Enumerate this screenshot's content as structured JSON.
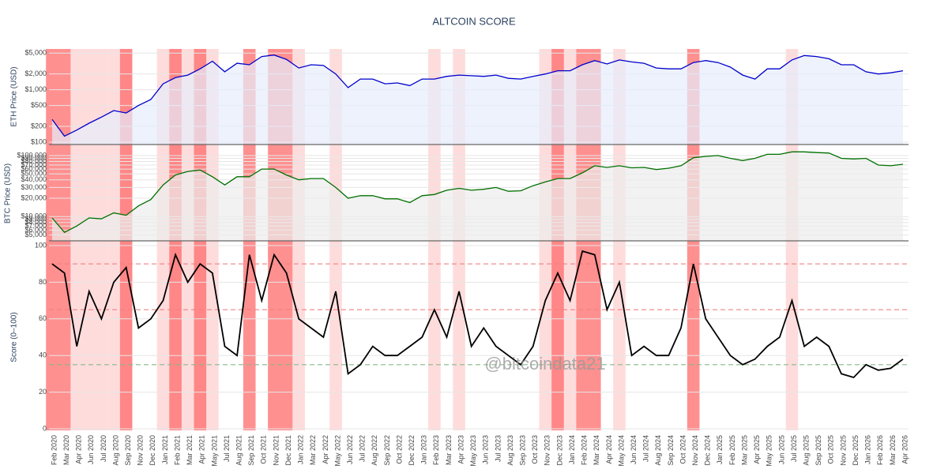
{
  "chart_data": {
    "type": "line",
    "title": "ALTCOIN SCORE",
    "watermark": "@bitcoindata21",
    "categories": [
      "Feb 2020",
      "Mar 2020",
      "Apr 2020",
      "Jun 2020",
      "Jul 2020",
      "Aug 2020",
      "Sep 2020",
      "Nov 2020",
      "Dec 2020",
      "Jan 2021",
      "Feb 2021",
      "Mar 2021",
      "Apr 2021",
      "May 2021",
      "Jul 2021",
      "Aug 2021",
      "Sep 2021",
      "Oct 2021",
      "Nov 2021",
      "Dec 2021",
      "Jan 2022",
      "Mar 2022",
      "Apr 2022",
      "May 2022",
      "Jun 2022",
      "Jul 2022",
      "Aug 2022",
      "Sep 2022",
      "Oct 2022",
      "Dec 2022",
      "Jan 2023",
      "Feb 2023",
      "Mar 2023",
      "Apr 2023",
      "May 2023",
      "Jun 2023",
      "Jul 2023",
      "Aug 2023",
      "Sep 2023",
      "Oct 2023",
      "Nov 2023",
      "Dec 2023",
      "Jan 2024",
      "Feb 2024",
      "Mar 2024",
      "Apr 2024",
      "May 2024",
      "Jun 2024",
      "Jul 2024",
      "Aug 2024",
      "Sep 2024",
      "Oct 2024",
      "Nov 2024",
      "Dec 2024",
      "Jan 2025",
      "Feb 2025",
      "Mar 2025",
      "Apr 2025",
      "May 2025",
      "Jun 2025",
      "Jul 2025",
      "Aug 2025",
      "Sep 2025",
      "Oct 2025",
      "Nov 2025",
      "Dec 2025",
      "Jan 2026",
      "Feb 2026",
      "Mar 2026",
      "Apr 2026"
    ],
    "bands": [
      {
        "start": "Feb 2020",
        "end": "Mar 2020",
        "color": "#ff6b6b"
      },
      {
        "start": "Apr 2020",
        "end": "Apr 2020",
        "color": "#ffd0d0"
      },
      {
        "start": "Jun 2020",
        "end": "Jul 2020",
        "color": "#ffd0d0"
      },
      {
        "start": "Aug 2020",
        "end": "Sep 2020",
        "color": "#ffd0d0"
      },
      {
        "start": "Sep 2020",
        "end": "Sep 2020",
        "color": "#ff6b6b"
      },
      {
        "start": "Jan 2021",
        "end": "May 2021",
        "color": "#ffd0d0"
      },
      {
        "start": "Feb 2021",
        "end": "Feb 2021",
        "color": "#ff6b6b"
      },
      {
        "start": "Apr 2021",
        "end": "Apr 2021",
        "color": "#ff6b6b"
      },
      {
        "start": "Sep 2021",
        "end": "Sep 2021",
        "color": "#ff6b6b"
      },
      {
        "start": "Nov 2021",
        "end": "Dec 2021",
        "color": "#ff6b6b"
      },
      {
        "start": "Jan 2022",
        "end": "Jan 2022",
        "color": "#ffd0d0"
      },
      {
        "start": "May 2022",
        "end": "May 2022",
        "color": "#ffd0d0"
      },
      {
        "start": "Feb 2023",
        "end": "Feb 2023",
        "color": "#ffd0d0"
      },
      {
        "start": "Apr 2023",
        "end": "Apr 2023",
        "color": "#ffd0d0"
      },
      {
        "start": "Nov 2023",
        "end": "Jan 2024",
        "color": "#ffd0d0"
      },
      {
        "start": "Dec 2023",
        "end": "Dec 2023",
        "color": "#ff6b6b"
      },
      {
        "start": "Feb 2024",
        "end": "Mar 2024",
        "color": "#ff6b6b"
      },
      {
        "start": "May 2024",
        "end": "May 2024",
        "color": "#ffd0d0"
      },
      {
        "start": "Nov 2024",
        "end": "Nov 2024",
        "color": "#ff6b6b"
      },
      {
        "start": "Jul 2025",
        "end": "Jul 2025",
        "color": "#ffd0d0"
      }
    ],
    "panels": [
      {
        "ylabel": "ETH Price (USD)",
        "log": true,
        "ylim": [
          90,
          6000
        ],
        "yticks": [
          {
            "value": 100,
            "label": "$100"
          },
          {
            "value": 200,
            "label": "$200"
          },
          {
            "value": 500,
            "label": "$500"
          },
          {
            "value": 1000,
            "label": "$1,000"
          },
          {
            "value": 2000,
            "label": "$2,000"
          },
          {
            "value": 5000,
            "label": "$5,000"
          }
        ],
        "series": [
          {
            "color": "#0000cc",
            "fill": "#e6ecfb",
            "values": [
              270,
              130,
              170,
              230,
              300,
              400,
              360,
              500,
              650,
              1300,
              1700,
              1900,
              2500,
              3500,
              2200,
              3200,
              3000,
              4300,
              4600,
              3800,
              2600,
              3000,
              2900,
              2000,
              1100,
              1600,
              1600,
              1300,
              1350,
              1200,
              1600,
              1600,
              1800,
              1900,
              1850,
              1800,
              1900,
              1650,
              1600,
              1800,
              2000,
              2300,
              2300,
              3000,
              3600,
              3100,
              3700,
              3400,
              3200,
              2600,
              2500,
              2500,
              3300,
              3600,
              3300,
              2700,
              1900,
              1600,
              2500,
              2500,
              3700,
              4500,
              4300,
              3900,
              3000,
              3000,
              2200,
              2000,
              2100,
              2300
            ]
          }
        ]
      },
      {
        "ylabel": "BTC Price (USD)",
        "log": true,
        "ylim": [
          4000,
          143000
        ],
        "yticks": [
          {
            "value": 5000,
            "label": "$5,000"
          },
          {
            "value": 6000,
            "label": "$6,000"
          },
          {
            "value": 7000,
            "label": "$7,000"
          },
          {
            "value": 8000,
            "label": "$8,000"
          },
          {
            "value": 9000,
            "label": "$9,000"
          },
          {
            "value": 10000,
            "label": "$10,000"
          },
          {
            "value": 20000,
            "label": "$20,000"
          },
          {
            "value": 30000,
            "label": "$30,000"
          },
          {
            "value": 40000,
            "label": "$40,000"
          },
          {
            "value": 50000,
            "label": "$50,000"
          },
          {
            "value": 60000,
            "label": "$60,000"
          },
          {
            "value": 70000,
            "label": "$70,000"
          },
          {
            "value": 80000,
            "label": "$80,000"
          },
          {
            "value": 90000,
            "label": "$90,000"
          },
          {
            "value": 100000,
            "label": "$100,000"
          }
        ],
        "series": [
          {
            "color": "#007000",
            "fill": "#ececec",
            "values": [
              9500,
              5500,
              7000,
              9500,
              9200,
              11500,
              10500,
              15000,
              19000,
              33000,
              48000,
              55000,
              58000,
              45000,
              33000,
              45000,
              45000,
              60000,
              60000,
              48000,
              40000,
              42000,
              42000,
              30000,
              20000,
              22000,
              22000,
              19500,
              19500,
              17000,
              22000,
              23000,
              27000,
              29000,
              27000,
              28000,
              30000,
              26000,
              26500,
              32000,
              37000,
              42000,
              42000,
              52000,
              68000,
              64000,
              68000,
              63000,
              64000,
              59000,
              62000,
              68000,
              92000,
              97000,
              100000,
              90000,
              83000,
              90000,
              105000,
              105000,
              115000,
              115000,
              112000,
              110000,
              90000,
              88000,
              90000,
              70000,
              68000,
              72000
            ]
          }
        ]
      },
      {
        "ylabel": "Score (0–100)",
        "log": false,
        "ylim": [
          0,
          100
        ],
        "yticks": [
          0,
          20,
          40,
          60,
          80,
          100
        ],
        "hlines": [
          {
            "value": 90,
            "color": "#f08080"
          },
          {
            "value": 65,
            "color": "#f08080"
          },
          {
            "value": 35,
            "color": "#88b888"
          }
        ],
        "series": [
          {
            "color": "#000000",
            "values": [
              90,
              85,
              45,
              75,
              60,
              80,
              88,
              55,
              60,
              70,
              95,
              80,
              90,
              85,
              45,
              40,
              95,
              70,
              95,
              85,
              60,
              55,
              50,
              75,
              30,
              35,
              45,
              40,
              40,
              45,
              50,
              65,
              50,
              75,
              45,
              55,
              45,
              40,
              35,
              45,
              70,
              85,
              70,
              97,
              95,
              65,
              80,
              40,
              45,
              40,
              40,
              55,
              90,
              60,
              50,
              40,
              35,
              38,
              45,
              50,
              70,
              45,
              50,
              45,
              30,
              28,
              35,
              32,
              33,
              38
            ]
          }
        ]
      }
    ]
  }
}
